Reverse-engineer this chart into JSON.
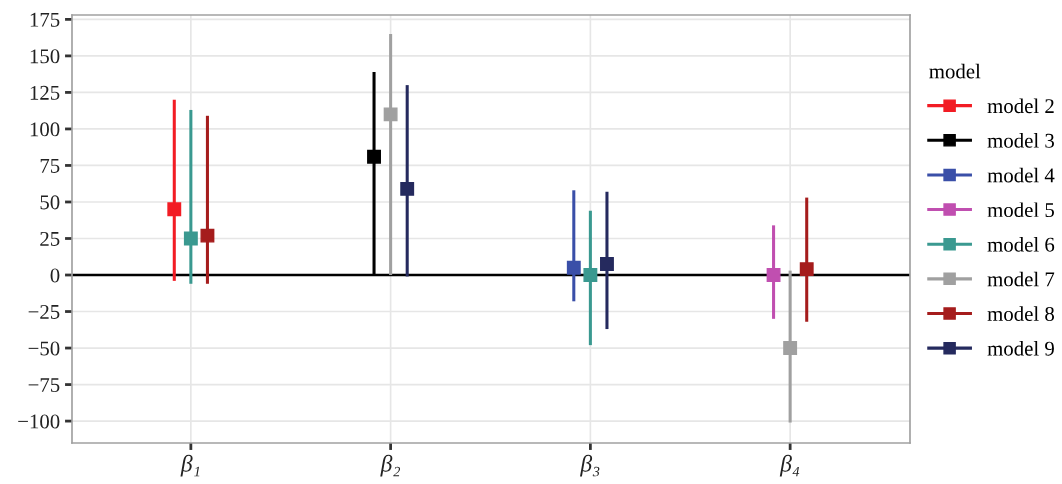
{
  "chart_data": {
    "type": "scatter",
    "legend_title": "model",
    "categories": [
      "β₁",
      "β₂",
      "β₃",
      "β₄"
    ],
    "ylim": [
      -115,
      178
    ],
    "yticks": [
      175,
      150,
      125,
      100,
      75,
      50,
      25,
      0,
      {
        "value": -25,
        "label": "−25"
      },
      {
        "value": -50,
        "label": "−50"
      },
      {
        "value": -75,
        "label": "−75"
      },
      {
        "value": -100,
        "label": "−100"
      }
    ],
    "grid": true,
    "legend": "right",
    "marker": "square",
    "line_style": "solid",
    "ref_lines": [
      {
        "axis": "y",
        "value": 0,
        "color": "#000000"
      }
    ],
    "series": [
      {
        "name": "model 2",
        "color": "#f21c24",
        "values": [
          45,
          null,
          null,
          null
        ],
        "errors": [
          [
            -4,
            120
          ],
          null,
          null,
          null
        ]
      },
      {
        "name": "model 3",
        "color": "#000000",
        "values": [
          null,
          81,
          null,
          null
        ],
        "errors": [
          null,
          [
            0,
            139
          ],
          null,
          null
        ]
      },
      {
        "name": "model 4",
        "color": "#3a4fa8",
        "values": [
          null,
          null,
          5,
          null
        ],
        "errors": [
          null,
          null,
          [
            -18,
            58
          ],
          null
        ]
      },
      {
        "name": "model 5",
        "color": "#c04fb0",
        "values": [
          null,
          null,
          null,
          0
        ],
        "errors": [
          null,
          null,
          null,
          [
            -30,
            34
          ]
        ]
      },
      {
        "name": "model 6",
        "color": "#3a9990",
        "values": [
          25,
          null,
          0,
          null
        ],
        "errors": [
          [
            -6,
            113
          ],
          null,
          [
            -48,
            44
          ],
          null
        ]
      },
      {
        "name": "model 7",
        "color": "#a0a0a0",
        "values": [
          null,
          110,
          null,
          -50
        ],
        "errors": [
          null,
          [
            0,
            165
          ],
          null,
          [
            -101,
            3
          ]
        ]
      },
      {
        "name": "model 8",
        "color": "#a51c1c",
        "values": [
          27,
          null,
          null,
          4
        ],
        "errors": [
          [
            -6,
            109
          ],
          null,
          null,
          [
            -32,
            53
          ]
        ]
      },
      {
        "name": "model 9",
        "color": "#252a5e",
        "values": [
          null,
          59,
          7.5,
          null
        ],
        "errors": [
          null,
          [
            -1,
            130
          ],
          [
            -37,
            57
          ],
          null
        ]
      }
    ]
  }
}
